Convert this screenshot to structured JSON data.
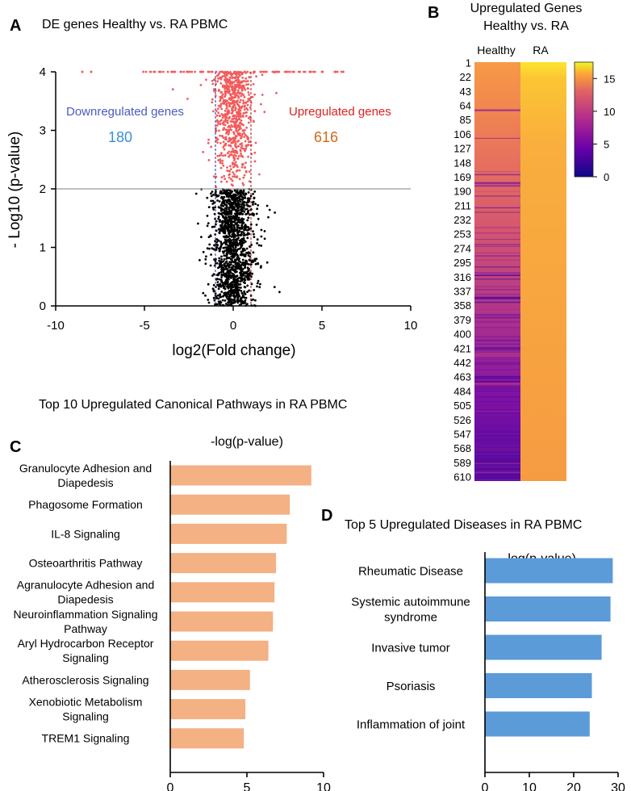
{
  "colors": {
    "upregulated": "#f25c5c",
    "downregulated_label": "#4a5bc2",
    "down_count": "#3a8fd6",
    "up_count": "#cc6a1e",
    "not_significant": "#000000",
    "threshold_line": "#999999",
    "fold_line_down": "#2a2a90",
    "fold_line_up": "#9a1a1a",
    "pathway_bar": "#f3b184",
    "disease_bar": "#5b9bd8"
  },
  "chart_data": [
    {
      "panel": "A",
      "type": "scatter",
      "title": "DE genes Healthy vs. RA PBMC",
      "xlabel": "log2(Fold change)",
      "ylabel": "- Log10 (p-value)",
      "xlim": [
        -10,
        10
      ],
      "ylim": [
        0,
        4
      ],
      "xticks": [
        "-10",
        "-5",
        "0",
        "5",
        "10"
      ],
      "yticks": [
        "0",
        "1",
        "2",
        "3",
        "4"
      ],
      "pvalue_threshold": 2,
      "fold_thresholds": [
        -1,
        1
      ],
      "annotations": {
        "down_label": "Downregulated genes",
        "down_count": "180",
        "up_label": "Upregulated genes",
        "up_count": "616"
      },
      "point_spread": {
        "center": 0,
        "sd": 0.55,
        "outlier_x_extent": [
          -8.5,
          6.2
        ]
      }
    },
    {
      "panel": "B",
      "type": "heatmap",
      "title_line1": "Upregulated Genes",
      "title_line2": "Healthy vs. RA",
      "columns": [
        "Healthy",
        "RA"
      ],
      "row_count": 616,
      "row_tick_labels": [
        "1",
        "22",
        "43",
        "64",
        "85",
        "106",
        "127",
        "148",
        "169",
        "190",
        "211",
        "232",
        "253",
        "274",
        "295",
        "316",
        "337",
        "358",
        "379",
        "400",
        "421",
        "442",
        "463",
        "484",
        "505",
        "526",
        "547",
        "568",
        "589",
        "610"
      ],
      "healthy_value_range": [
        14,
        1
      ],
      "ra_value_range": [
        17,
        15.5
      ],
      "colorbar_range": [
        0,
        17.5
      ],
      "colorbar_ticks": [
        "15",
        "10",
        "5",
        "0"
      ]
    },
    {
      "panel": "C",
      "type": "bar",
      "orientation": "horizontal",
      "title": "Top 10 Upregulated Canonical Pathways in RA PBMC",
      "xlabel": "-log(p-value)",
      "xlim": [
        0,
        10
      ],
      "xticks": [
        "0",
        "5",
        "10"
      ],
      "categories": [
        [
          "Granulocyte Adhesion and",
          "Diapedesis"
        ],
        [
          "Phagosome Formation"
        ],
        [
          "IL-8 Signaling"
        ],
        [
          "Osteoarthritis Pathway"
        ],
        [
          "Agranulocyte Adhesion and",
          "Diapedesis"
        ],
        [
          "Neuroinflammation Signaling",
          "Pathway"
        ],
        [
          "Aryl Hydrocarbon Receptor",
          "Signaling"
        ],
        [
          "Atherosclerosis Signaling"
        ],
        [
          "Xenobiotic Metabolism",
          "Signaling"
        ],
        [
          "TREM1 Signaling"
        ]
      ],
      "values": [
        9.2,
        7.8,
        7.6,
        6.9,
        6.8,
        6.7,
        6.4,
        5.2,
        4.9,
        4.8
      ]
    },
    {
      "panel": "D",
      "type": "bar",
      "orientation": "horizontal",
      "title": "Top 5 Upregulated Diseases in RA PBMC",
      "xlabel": "-log(p-value)",
      "xlim": [
        0,
        30
      ],
      "xticks": [
        "0",
        "10",
        "20",
        "30"
      ],
      "categories": [
        [
          "Rheumatic Disease"
        ],
        [
          "Systemic autoimmune",
          "syndrome"
        ],
        [
          "Invasive tumor"
        ],
        [
          "Psoriasis"
        ],
        [
          "Inflammation of joint"
        ]
      ],
      "values": [
        28.8,
        28.3,
        26.3,
        24.1,
        23.6
      ]
    }
  ]
}
